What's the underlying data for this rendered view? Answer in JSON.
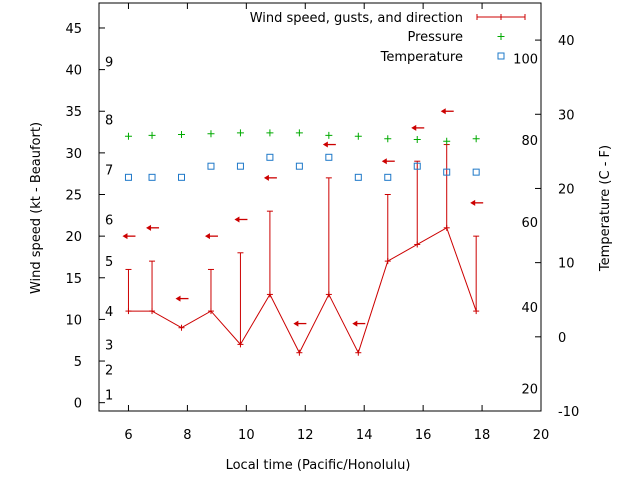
{
  "chart_data": {
    "type": "line",
    "xlabel": "Local time (Pacific/Honolulu)",
    "ylabel": "Wind speed (kt - Beaufort)",
    "y2label": "Temperature (C - F)",
    "xlim": [
      5,
      20
    ],
    "ylim": [
      -1,
      48
    ],
    "y2lim": [
      -10,
      45
    ],
    "x_ticks": [
      6,
      8,
      10,
      12,
      14,
      16,
      18,
      20
    ],
    "y_ticks": [
      0,
      5,
      10,
      15,
      20,
      25,
      30,
      35,
      40,
      45
    ],
    "y2_ticks": [
      -10,
      0,
      10,
      20,
      30,
      40
    ],
    "beaufort_labels": [
      {
        "label": "1",
        "y": 1
      },
      {
        "label": "2",
        "y": 4
      },
      {
        "label": "3",
        "y": 7
      },
      {
        "label": "4",
        "y": 11
      },
      {
        "label": "5",
        "y": 17
      },
      {
        "label": "6",
        "y": 22
      },
      {
        "label": "7",
        "y": 28
      },
      {
        "label": "8",
        "y": 34
      },
      {
        "label": "9",
        "y": 41
      }
    ],
    "fahrenheit_labels": [
      {
        "label": "20",
        "y2": -7
      },
      {
        "label": "40",
        "y2": 4
      },
      {
        "label": "60",
        "y2": 15.5
      },
      {
        "label": "80",
        "y2": 26.5
      },
      {
        "label": "100",
        "y2": 37.5
      }
    ],
    "legend": {
      "position": "top-right",
      "entries": [
        "Wind speed, gusts, and direction",
        "Pressure",
        "Temperature"
      ]
    },
    "series": [
      {
        "name": "Wind speed, gusts, and direction",
        "color": "#cc0000",
        "x": [
          6,
          6.8,
          7.8,
          8.8,
          9.8,
          10.8,
          11.8,
          12.8,
          13.8,
          14.8,
          15.8,
          16.8,
          17.8
        ],
        "values": [
          11,
          11,
          9,
          11,
          7,
          13,
          6,
          13,
          6,
          17,
          19,
          21,
          11
        ],
        "gusts": [
          16,
          17,
          null,
          16,
          18,
          23,
          null,
          27,
          null,
          25,
          29,
          31,
          20
        ]
      },
      {
        "name": "Pressure",
        "color": "#00aa00",
        "x": [
          6,
          6.8,
          7.8,
          8.8,
          9.8,
          10.8,
          11.8,
          12.8,
          13.8,
          14.8,
          15.8,
          16.8,
          17.8
        ],
        "values": [
          32,
          32.1,
          32.2,
          32.3,
          32.4,
          32.4,
          32.4,
          32.1,
          32,
          31.7,
          31.6,
          31.4,
          31.7
        ]
      },
      {
        "name": "Temperature",
        "color": "#1e78c8",
        "axis": "y2",
        "x": [
          6,
          6.8,
          7.8,
          8.8,
          9.8,
          10.8,
          11.8,
          12.8,
          13.8,
          14.8,
          15.8,
          16.8,
          17.8
        ],
        "values": [
          21.5,
          21.5,
          21.5,
          23,
          23,
          24.2,
          23,
          24.2,
          21.5,
          21.5,
          23,
          22.2,
          22.2
        ]
      }
    ],
    "wind_direction_arrows": [
      {
        "x": 6,
        "y": 20
      },
      {
        "x": 6.8,
        "y": 21
      },
      {
        "x": 7.8,
        "y": 12.5
      },
      {
        "x": 8.8,
        "y": 20
      },
      {
        "x": 9.8,
        "y": 22
      },
      {
        "x": 10.8,
        "y": 27
      },
      {
        "x": 11.8,
        "y": 9.5
      },
      {
        "x": 12.8,
        "y": 31
      },
      {
        "x": 13.8,
        "y": 9.5
      },
      {
        "x": 14.8,
        "y": 29
      },
      {
        "x": 15.8,
        "y": 33
      },
      {
        "x": 16.8,
        "y": 35
      },
      {
        "x": 17.8,
        "y": 24
      }
    ]
  }
}
